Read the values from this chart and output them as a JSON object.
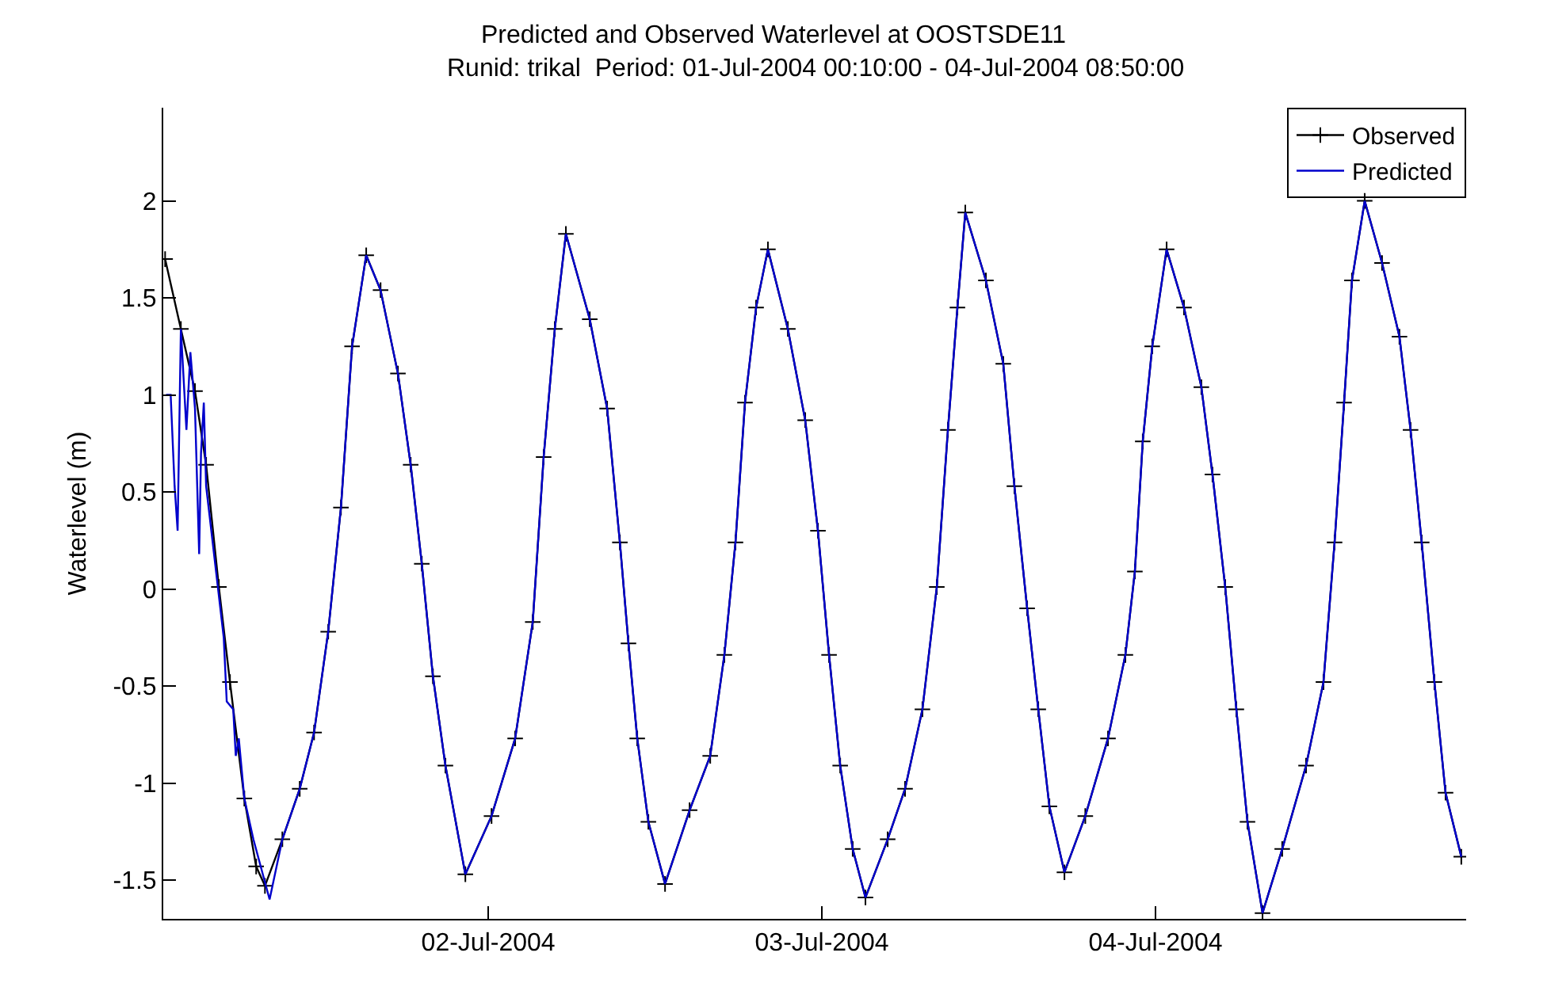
{
  "chart_data": {
    "type": "line",
    "title": "Predicted and Observed Waterlevel at OOSTSDE11",
    "subtitle": "Runid: trikal  Period: 01-Jul-2004 00:10:00 - 04-Jul-2004 08:50:00",
    "ylabel": "Waterlevel (m)",
    "xlim": [
      "2004-07-01T00:37",
      "2004-07-04T22:21"
    ],
    "xticks": [
      {
        "value": "2004-07-02",
        "label": "02-Jul-2004"
      },
      {
        "value": "2004-07-03",
        "label": "03-Jul-2004"
      },
      {
        "value": "2004-07-04",
        "label": "04-Jul-2004"
      }
    ],
    "ylim": [
      -1.7,
      2.48
    ],
    "yticks": [
      -1.5,
      -1,
      -0.5,
      0,
      0.5,
      1,
      1.5,
      2
    ],
    "grid": false,
    "legend": "top right",
    "series": [
      {
        "name": "Observed",
        "color": "#000000",
        "marker": "cross",
        "x": [
          "2004-07-01T00:45",
          "2004-07-01T01:53",
          "2004-07-01T02:54",
          "2004-07-01T03:42",
          "2004-07-01T04:37",
          "2004-07-01T05:25",
          "2004-07-01T06:27",
          "2004-07-01T07:18",
          "2004-07-01T07:56",
          "2004-07-01T09:11",
          "2004-07-01T10:26",
          "2004-07-01T11:28",
          "2004-07-01T12:29",
          "2004-07-01T13:24",
          "2004-07-01T14:12",
          "2004-07-01T15:13",
          "2004-07-01T16:15",
          "2004-07-01T17:30",
          "2004-07-01T18:25",
          "2004-07-01T19:13",
          "2004-07-01T20:01",
          "2004-07-01T20:55",
          "2004-07-01T22:21",
          "2004-07-02T00:14",
          "2004-07-02T01:56",
          "2004-07-02T03:12",
          "2004-07-02T03:59",
          "2004-07-02T04:47",
          "2004-07-02T05:35",
          "2004-07-02T07:18",
          "2004-07-02T08:33",
          "2004-07-02T09:28",
          "2004-07-02T10:05",
          "2004-07-02T10:43",
          "2004-07-02T11:31",
          "2004-07-02T12:43",
          "2004-07-02T14:29",
          "2004-07-02T15:58",
          "2004-07-02T16:59",
          "2004-07-02T17:47",
          "2004-07-02T18:28",
          "2004-07-02T19:16",
          "2004-07-02T20:07",
          "2004-07-02T21:33",
          "2004-07-02T22:48",
          "2004-07-02T23:43",
          "2004-07-03T00:31",
          "2004-07-03T01:19",
          "2004-07-03T02:13",
          "2004-07-03T03:08",
          "2004-07-03T04:44",
          "2004-07-03T05:59",
          "2004-07-03T07:14",
          "2004-07-03T08:16",
          "2004-07-03T09:04",
          "2004-07-03T09:45",
          "2004-07-03T10:19",
          "2004-07-03T11:48",
          "2004-07-03T13:03",
          "2004-07-03T13:51",
          "2004-07-03T14:46",
          "2004-07-03T15:34",
          "2004-07-03T16:22",
          "2004-07-03T17:27",
          "2004-07-03T18:57",
          "2004-07-03T20:35",
          "2004-07-03T21:50",
          "2004-07-03T22:31",
          "2004-07-03T23:05",
          "2004-07-03T23:46",
          "2004-07-04T00:48",
          "2004-07-04T02:03",
          "2004-07-04T03:18",
          "2004-07-04T04:06",
          "2004-07-04T05:01",
          "2004-07-04T05:49",
          "2004-07-04T06:37",
          "2004-07-04T07:42",
          "2004-07-04T09:07",
          "2004-07-04T10:50",
          "2004-07-04T12:05",
          "2004-07-04T12:53",
          "2004-07-04T13:34",
          "2004-07-04T14:08",
          "2004-07-04T15:03",
          "2004-07-04T16:18",
          "2004-07-04T17:33",
          "2004-07-04T18:21",
          "2004-07-04T19:09",
          "2004-07-04T20:04",
          "2004-07-04T20:52",
          "2004-07-04T22:00"
        ],
        "values": [
          1.7,
          1.34,
          1.02,
          0.64,
          0.01,
          -0.48,
          -1.08,
          -1.43,
          -1.53,
          -1.29,
          -1.03,
          -0.74,
          -0.22,
          0.42,
          1.25,
          1.72,
          1.54,
          1.11,
          0.64,
          0.13,
          -0.45,
          -0.91,
          -1.47,
          -1.17,
          -0.77,
          -0.17,
          0.68,
          1.34,
          1.83,
          1.39,
          0.93,
          0.24,
          -0.28,
          -0.77,
          -1.2,
          -1.52,
          -1.14,
          -0.86,
          -0.34,
          0.24,
          0.96,
          1.45,
          1.75,
          1.34,
          0.87,
          0.3,
          -0.34,
          -0.91,
          -1.34,
          -1.59,
          -1.29,
          -1.03,
          -0.62,
          0.01,
          0.82,
          1.45,
          1.94,
          1.59,
          1.16,
          0.53,
          -0.1,
          -0.62,
          -1.12,
          -1.46,
          -1.17,
          -0.77,
          -0.34,
          0.09,
          0.76,
          1.25,
          1.75,
          1.45,
          1.04,
          0.59,
          0.01,
          -0.62,
          -1.2,
          -1.67,
          -1.34,
          -0.91,
          -0.48,
          0.24,
          0.96,
          1.59,
          2.0,
          1.68,
          1.3,
          0.82,
          0.24,
          -0.48,
          -1.05,
          -1.38
        ]
      },
      {
        "name": "Predicted",
        "color": "#0000cc",
        "marker": "none",
        "x": [
          "2004-07-01T00:49",
          "2004-07-01T01:09",
          "2004-07-01T01:26",
          "2004-07-01T01:39",
          "2004-07-01T01:53",
          "2004-07-01T02:17",
          "2004-07-01T02:34",
          "2004-07-01T02:54",
          "2004-07-01T03:12",
          "2004-07-01T03:20",
          "2004-07-01T03:32",
          "2004-07-01T03:42",
          "2004-07-01T04:58",
          "2004-07-01T05:11",
          "2004-07-01T05:39",
          "2004-07-01T05:50",
          "2004-07-01T06:03",
          "2004-07-01T06:27",
          "2004-07-01T07:06",
          "2004-07-01T08:16",
          "2004-07-01T09:11",
          "2004-07-01T10:26",
          "2004-07-01T11:28",
          "2004-07-01T12:29",
          "2004-07-01T13:24",
          "2004-07-01T14:12",
          "2004-07-01T15:13",
          "2004-07-01T16:15",
          "2004-07-01T17:30",
          "2004-07-01T18:25",
          "2004-07-01T19:13",
          "2004-07-01T20:01",
          "2004-07-01T20:55",
          "2004-07-01T22:21",
          "2004-07-02T00:14",
          "2004-07-02T01:56",
          "2004-07-02T03:12",
          "2004-07-02T03:59",
          "2004-07-02T04:47",
          "2004-07-02T05:35",
          "2004-07-02T07:18",
          "2004-07-02T08:33",
          "2004-07-02T09:28",
          "2004-07-02T10:05",
          "2004-07-02T10:43",
          "2004-07-02T11:31",
          "2004-07-02T12:43",
          "2004-07-02T14:29",
          "2004-07-02T15:58",
          "2004-07-02T16:59",
          "2004-07-02T17:47",
          "2004-07-02T18:28",
          "2004-07-02T19:16",
          "2004-07-02T20:07",
          "2004-07-02T21:33",
          "2004-07-02T22:48",
          "2004-07-02T23:43",
          "2004-07-03T00:31",
          "2004-07-03T01:19",
          "2004-07-03T02:13",
          "2004-07-03T03:08",
          "2004-07-03T04:44",
          "2004-07-03T05:59",
          "2004-07-03T07:14",
          "2004-07-03T08:16",
          "2004-07-03T09:04",
          "2004-07-03T09:45",
          "2004-07-03T10:19",
          "2004-07-03T11:48",
          "2004-07-03T13:03",
          "2004-07-03T13:51",
          "2004-07-03T14:46",
          "2004-07-03T15:34",
          "2004-07-03T16:22",
          "2004-07-03T17:27",
          "2004-07-03T18:57",
          "2004-07-03T20:35",
          "2004-07-03T21:50",
          "2004-07-03T22:31",
          "2004-07-03T23:05",
          "2004-07-03T23:46",
          "2004-07-04T00:48",
          "2004-07-04T02:03",
          "2004-07-04T03:18",
          "2004-07-04T04:06",
          "2004-07-04T05:01",
          "2004-07-04T05:49",
          "2004-07-04T06:37",
          "2004-07-04T07:42",
          "2004-07-04T09:07",
          "2004-07-04T10:50",
          "2004-07-04T12:05",
          "2004-07-04T12:53",
          "2004-07-04T13:34",
          "2004-07-04T14:08",
          "2004-07-04T15:03",
          "2004-07-04T16:18",
          "2004-07-04T17:33",
          "2004-07-04T18:21",
          "2004-07-04T19:09",
          "2004-07-04T20:04",
          "2004-07-04T20:52",
          "2004-07-04T22:00"
        ],
        "values": [
          1.0,
          1.0,
          0.53,
          0.3,
          1.34,
          0.82,
          1.22,
          0.93,
          0.18,
          0.7,
          0.96,
          0.53,
          -0.25,
          -0.58,
          -0.62,
          -0.86,
          -0.77,
          -1.08,
          -1.29,
          -1.6,
          -1.29,
          -1.03,
          -0.74,
          -0.22,
          0.42,
          1.25,
          1.72,
          1.54,
          1.11,
          0.64,
          0.13,
          -0.45,
          -0.91,
          -1.47,
          -1.17,
          -0.77,
          -0.17,
          0.68,
          1.34,
          1.83,
          1.39,
          0.93,
          0.24,
          -0.28,
          -0.77,
          -1.2,
          -1.52,
          -1.14,
          -0.86,
          -0.34,
          0.24,
          0.96,
          1.45,
          1.75,
          1.34,
          0.87,
          0.3,
          -0.34,
          -0.91,
          -1.34,
          -1.59,
          -1.29,
          -1.03,
          -0.62,
          0.01,
          0.82,
          1.45,
          1.94,
          1.59,
          1.16,
          0.53,
          -0.1,
          -0.62,
          -1.12,
          -1.46,
          -1.17,
          -0.77,
          -0.34,
          0.09,
          0.76,
          1.25,
          1.75,
          1.45,
          1.04,
          0.59,
          0.01,
          -0.62,
          -1.2,
          -1.67,
          -1.34,
          -0.91,
          -0.48,
          0.24,
          0.96,
          1.59,
          2.0,
          1.68,
          1.3,
          0.82,
          0.24,
          -0.48,
          -1.05,
          -1.38
        ]
      }
    ]
  }
}
